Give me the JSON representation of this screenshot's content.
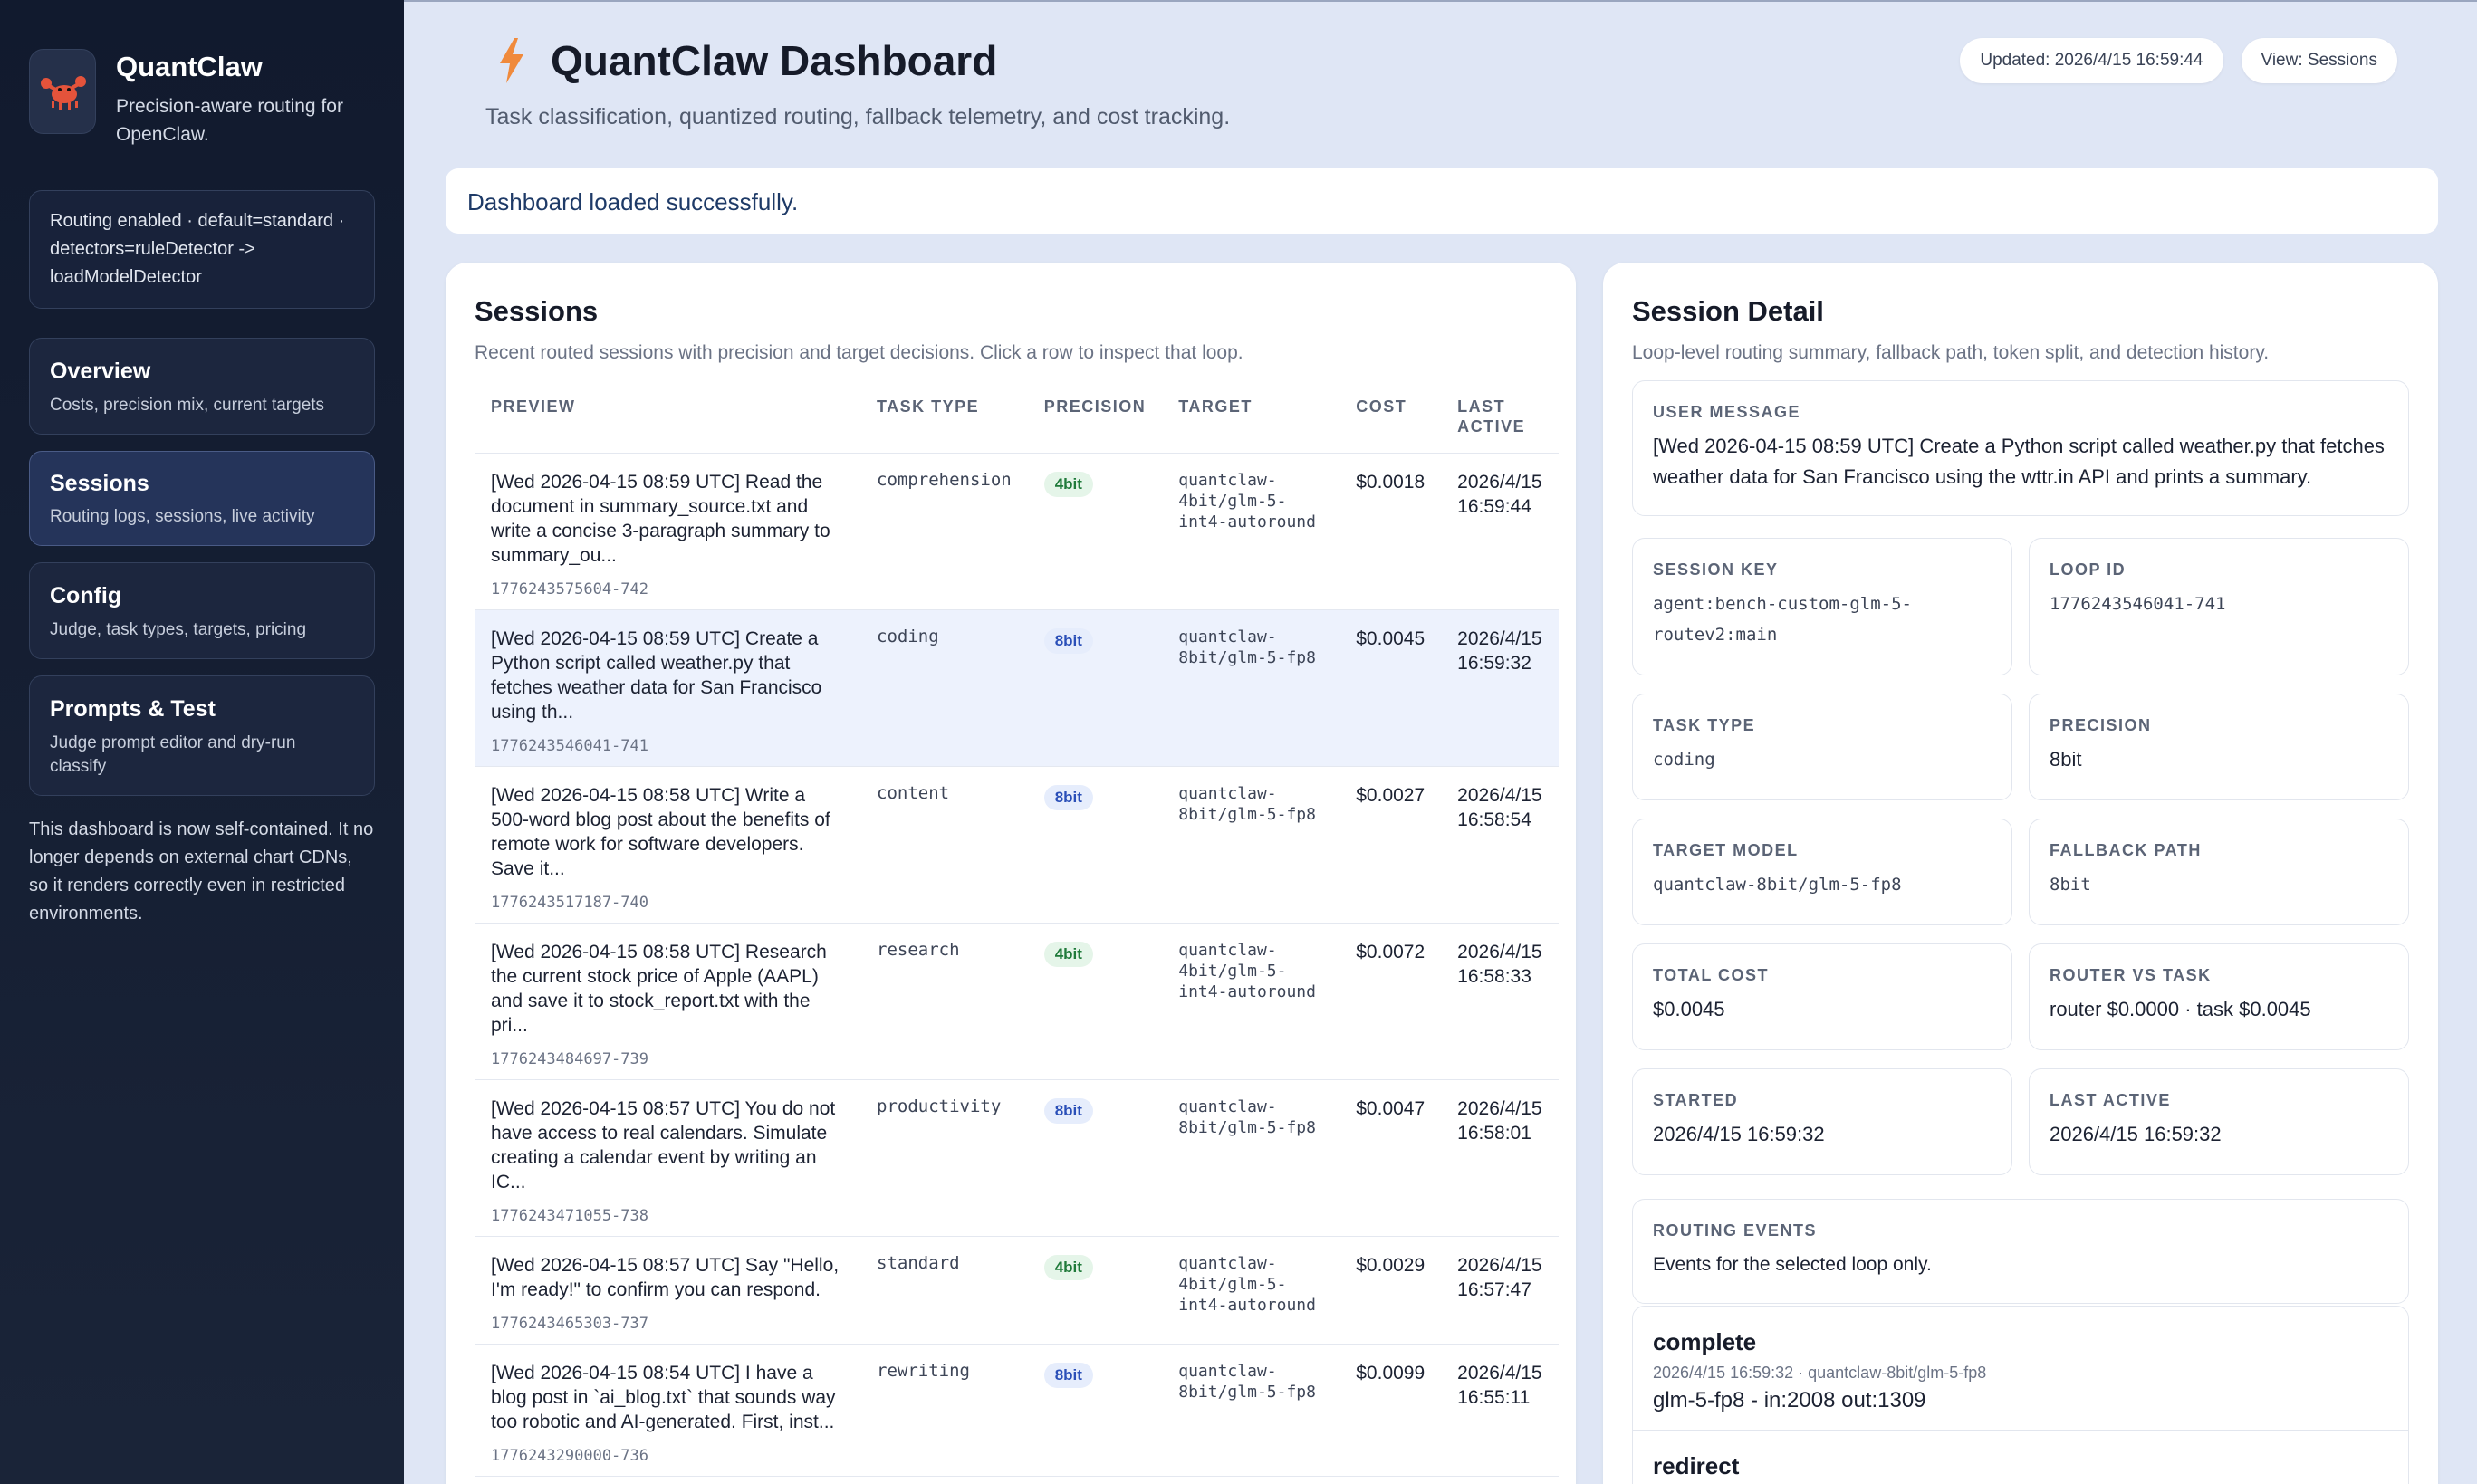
{
  "sidebar": {
    "brand_title": "QuantClaw",
    "brand_subtitle": "Precision-aware routing for OpenClaw.",
    "routing_status": "Routing enabled · default=standard · detectors=ruleDetector -> loadModelDetector",
    "nav": [
      {
        "title": "Overview",
        "subtitle": "Costs, precision mix, current targets"
      },
      {
        "title": "Sessions",
        "subtitle": "Routing logs, sessions, live activity"
      },
      {
        "title": "Config",
        "subtitle": "Judge, task types, targets, pricing"
      },
      {
        "title": "Prompts & Test",
        "subtitle": "Judge prompt editor and dry-run classify"
      }
    ],
    "note": "This dashboard is now self-contained. It no longer depends on external chart CDNs, so it renders correctly even in restricted environments."
  },
  "header": {
    "title": "QuantClaw Dashboard",
    "subtitle": "Task classification, quantized routing, fallback telemetry, and cost tracking.",
    "updated": "Updated: 2026/4/15 16:59:44",
    "view": "View: Sessions"
  },
  "toast": "Dashboard loaded successfully.",
  "sessions": {
    "title": "Sessions",
    "subtitle": "Recent routed sessions with precision and target decisions. Click a row to inspect that loop.",
    "columns": [
      "PREVIEW",
      "TASK TYPE",
      "PRECISION",
      "TARGET",
      "COST",
      "LAST ACTIVE"
    ],
    "rows": [
      {
        "preview": "[Wed 2026-04-15 08:59 UTC] Read the document in summary_source.txt and write a concise 3-paragraph summary to summary_ou...",
        "id": "1776243575604-742",
        "task": "comprehension",
        "precision": "4bit",
        "target": "quantclaw-4bit/glm-5-int4-autoround",
        "cost": "$0.0018",
        "active": "2026/4/15 16:59:44"
      },
      {
        "preview": "[Wed 2026-04-15 08:59 UTC] Create a Python script called weather.py that fetches weather data for San Francisco using th...",
        "id": "1776243546041-741",
        "task": "coding",
        "precision": "8bit",
        "target": "quantclaw-8bit/glm-5-fp8",
        "cost": "$0.0045",
        "active": "2026/4/15 16:59:32"
      },
      {
        "preview": "[Wed 2026-04-15 08:58 UTC] Write a 500-word blog post about the benefits of remote work for software developers. Save it...",
        "id": "1776243517187-740",
        "task": "content",
        "precision": "8bit",
        "target": "quantclaw-8bit/glm-5-fp8",
        "cost": "$0.0027",
        "active": "2026/4/15 16:58:54"
      },
      {
        "preview": "[Wed 2026-04-15 08:58 UTC] Research the current stock price of Apple (AAPL) and save it to stock_report.txt with the pri...",
        "id": "1776243484697-739",
        "task": "research",
        "precision": "4bit",
        "target": "quantclaw-4bit/glm-5-int4-autoround",
        "cost": "$0.0072",
        "active": "2026/4/15 16:58:33"
      },
      {
        "preview": "[Wed 2026-04-15 08:57 UTC] You do not have access to real calendars. Simulate creating a calendar event by writing an IC...",
        "id": "1776243471055-738",
        "task": "productivity",
        "precision": "8bit",
        "target": "quantclaw-8bit/glm-5-fp8",
        "cost": "$0.0047",
        "active": "2026/4/15 16:58:01"
      },
      {
        "preview": "[Wed 2026-04-15 08:57 UTC] Say \"Hello, I'm ready!\" to confirm you can respond.",
        "id": "1776243465303-737",
        "task": "standard",
        "precision": "4bit",
        "target": "quantclaw-4bit/glm-5-int4-autoround",
        "cost": "$0.0029",
        "active": "2026/4/15 16:57:47"
      },
      {
        "preview": "[Wed 2026-04-15 08:54 UTC] I have a blog post in `ai_blog.txt` that sounds way too robotic and AI-generated. First, inst...",
        "id": "1776243290000-736",
        "task": "rewriting",
        "precision": "8bit",
        "target": "quantclaw-8bit/glm-5-fp8",
        "cost": "$0.0099",
        "active": "2026/4/15 16:55:11"
      }
    ]
  },
  "detail": {
    "title": "Session Detail",
    "subtitle": "Loop-level routing summary, fallback path, token split, and detection history.",
    "user_message_label": "USER MESSAGE",
    "user_message": "[Wed 2026-04-15 08:59 UTC] Create a Python script called weather.py that fetches weather data for San Francisco using the wttr.in API and prints a summary.",
    "session_key_label": "SESSION KEY",
    "session_key": "agent:bench-custom-glm-5-routev2:main",
    "loop_id_label": "LOOP ID",
    "loop_id": "1776243546041-741",
    "task_type_label": "TASK TYPE",
    "task_type": "coding",
    "precision_label": "PRECISION",
    "precision": "8bit",
    "target_model_label": "TARGET MODEL",
    "target_model": "quantclaw-8bit/glm-5-fp8",
    "fallback_label": "FALLBACK PATH",
    "fallback": "8bit",
    "total_cost_label": "TOTAL COST",
    "total_cost": "$0.0045",
    "router_task_label": "ROUTER VS TASK",
    "router_task": "router $0.0000 · task $0.0045",
    "started_label": "STARTED",
    "started": "2026/4/15 16:59:32",
    "last_active_label": "LAST ACTIVE",
    "last_active": "2026/4/15 16:59:32",
    "events_label": "ROUTING EVENTS",
    "events_sub": "Events for the selected loop only.",
    "events": [
      {
        "title": "complete",
        "meta": "2026/4/15 16:59:32 · quantclaw-8bit/glm-5-fp8",
        "body": "glm-5-fp8 - in:2008 out:1309"
      },
      {
        "title": "redirect",
        "meta": "",
        "body": ""
      }
    ]
  }
}
